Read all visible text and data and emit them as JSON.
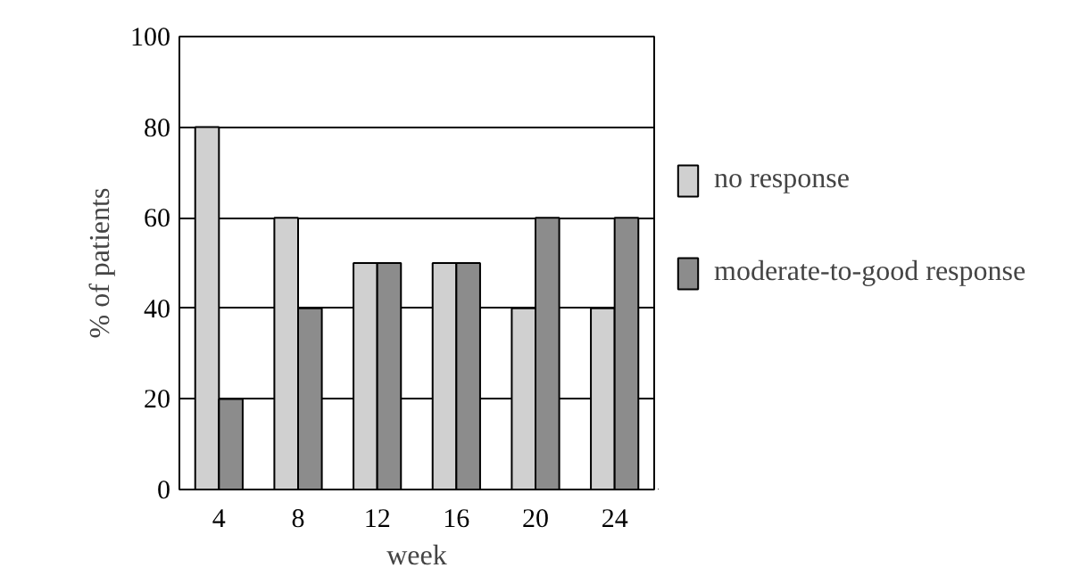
{
  "chart_data": {
    "type": "bar",
    "xlabel": "week",
    "ylabel": "% of patients",
    "categories": [
      "4",
      "8",
      "12",
      "16",
      "20",
      "24"
    ],
    "series": [
      {
        "name": "no response",
        "color": "#d0d0d0",
        "values": [
          80,
          60,
          50,
          50,
          40,
          40
        ]
      },
      {
        "name": "moderate-to-good response",
        "color": "#8c8c8c",
        "values": [
          20,
          40,
          50,
          50,
          60,
          60
        ]
      }
    ],
    "ylim": [
      0,
      100
    ],
    "yticks": [
      0,
      20,
      40,
      60,
      80,
      100
    ],
    "grid": "y",
    "legend": "right"
  }
}
